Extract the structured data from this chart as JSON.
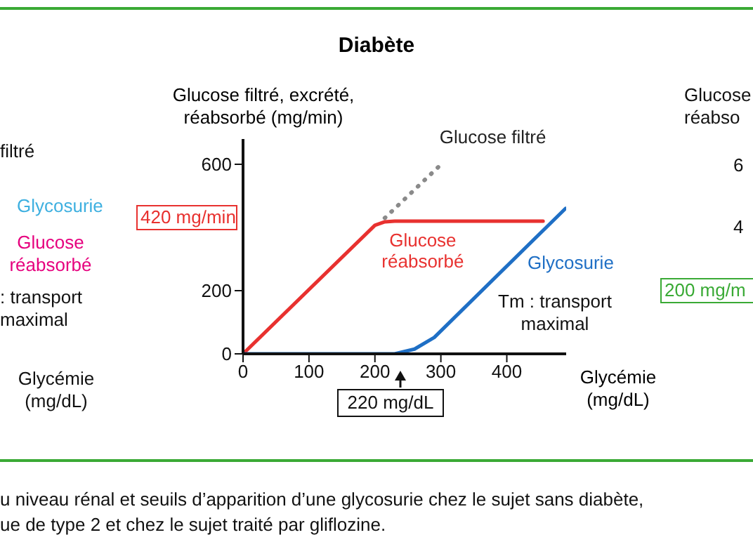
{
  "chart_data": {
    "type": "line",
    "title": "Diabète",
    "xlabel": "Glycémie (mg/dL)",
    "ylabel": "Glucose filtré, excrété, réabsorbé (mg/min)",
    "xlim": [
      0,
      490
    ],
    "xticks": [
      0,
      100,
      200,
      300,
      400
    ],
    "ylim": [
      0,
      680
    ],
    "yticks": [
      0,
      200,
      600
    ],
    "marker": "none",
    "series": [
      {
        "name": "Glucose filtré",
        "color": "#8a8a8a",
        "line_style": "dotted",
        "x": [
          215,
          298
        ],
        "values": [
          430,
          595
        ]
      },
      {
        "name": "Glucose réabsorbé",
        "color": "#e8312f",
        "line_style": "solid",
        "x": [
          0,
          200,
          215,
          230,
          455
        ],
        "values": [
          0,
          407,
          418,
          420,
          420
        ]
      },
      {
        "name": "Glycosurie",
        "color": "#1f6fc5",
        "line_style": "solid",
        "x": [
          0,
          230,
          260,
          290,
          489
        ],
        "values": [
          0,
          0,
          15,
          52,
          460
        ]
      }
    ],
    "annotations": [
      "420 mg/min",
      "220 mg/dL",
      "Tm : transport maximal",
      "u niveau rénal et seuils d’apparition d’une glycosurie chez le sujet sans diabète,",
      "ue de type 2 et chez le sujet traité par gliflozine.",
      "filtré",
      "Glycosurie",
      "Glucose réabsorbé",
      ": transport maximal",
      "Glycémie (mg/dL)",
      "Glucose réabso",
      "6",
      "4",
      "200 mg/m"
    ]
  }
}
